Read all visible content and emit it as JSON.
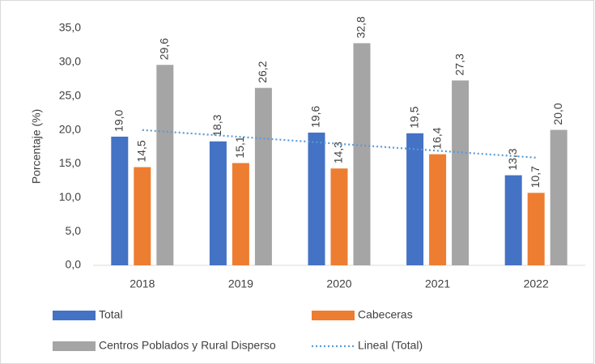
{
  "chart_data": {
    "type": "bar",
    "y_label": "Porcentaje (%)",
    "categories": [
      "2018",
      "2019",
      "2020",
      "2021",
      "2022"
    ],
    "series": [
      {
        "name": "Total",
        "color": "#4472c4",
        "values": [
          19.0,
          18.3,
          19.6,
          19.5,
          13.3
        ],
        "value_labels": [
          "19,0",
          "18,3",
          "19,6",
          "19,5",
          "13,3"
        ]
      },
      {
        "name": "Cabeceras",
        "color": "#ed7d31",
        "values": [
          14.5,
          15.1,
          14.3,
          16.4,
          10.7
        ],
        "value_labels": [
          "14,5",
          "15,1",
          "14,3",
          "16,4",
          "10,7"
        ]
      },
      {
        "name": "Centros Poblados y Rural Disperso",
        "color": "#a5a5a5",
        "values": [
          29.6,
          26.2,
          32.8,
          27.3,
          20.0
        ],
        "value_labels": [
          "29,6",
          "26,2",
          "32,8",
          "27,3",
          "20,0"
        ]
      }
    ],
    "trendline": {
      "name": "Lineal (Total)",
      "color": "#5b9bd5",
      "values": [
        19.98,
        18.96,
        17.94,
        16.92,
        15.9
      ]
    },
    "ylim": [
      0,
      35
    ],
    "yticks": [
      {
        "value": 0,
        "label": "0,0"
      },
      {
        "value": 5,
        "label": "5,0"
      },
      {
        "value": 10,
        "label": "10,0"
      },
      {
        "value": 15,
        "label": "15,0"
      },
      {
        "value": 20,
        "label": "20,0"
      },
      {
        "value": 25,
        "label": "25,0"
      },
      {
        "value": 30,
        "label": "30,0"
      },
      {
        "value": 35,
        "label": "35,0"
      }
    ],
    "grid": false
  }
}
